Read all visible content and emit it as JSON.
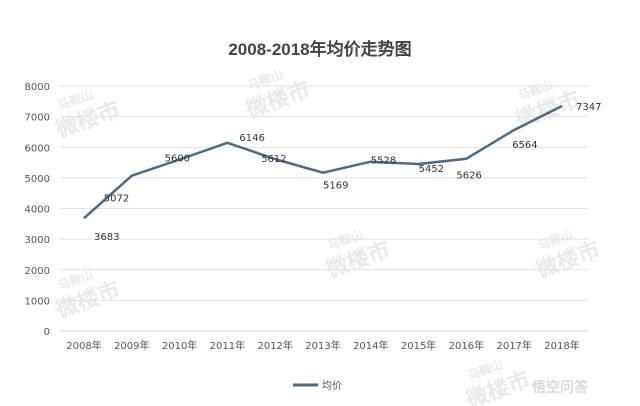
{
  "chart_data": {
    "type": "line",
    "title": "2008-2018年均价走势图",
    "categories": [
      "2008年",
      "2009年",
      "2010年",
      "2011年",
      "2012年",
      "2013年",
      "2014年",
      "2015年",
      "2016年",
      "2017年",
      "2018年"
    ],
    "series": [
      {
        "name": "均价",
        "values": [
          3683,
          5072,
          5600,
          6146,
          5612,
          5169,
          5528,
          5452,
          5626,
          6564,
          7347
        ],
        "color": "#4a6a88"
      }
    ],
    "xlabel": "",
    "ylabel": "",
    "ylim": [
      0,
      8000
    ],
    "yticks": [
      0,
      1000,
      2000,
      3000,
      4000,
      5000,
      6000,
      7000,
      8000
    ],
    "grid": true,
    "data_labels": true,
    "legend": "bottom"
  },
  "watermarks": [
    "马鞍山",
    "微楼市",
    "悟空问答"
  ]
}
